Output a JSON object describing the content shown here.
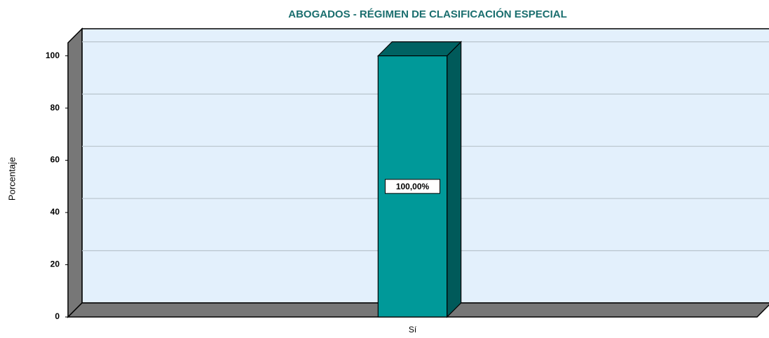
{
  "chart_data": {
    "type": "bar3d",
    "title": "ABOGADOS - RÉGIMEN DE CLASIFICACIÓN ESPECIAL",
    "y_label": "Porcentaje",
    "categories": [
      "Sí"
    ],
    "values": [
      100
    ],
    "value_labels": [
      "100,00%"
    ],
    "color": "#009999",
    "ylim": [
      0,
      105
    ],
    "yticks": [
      0,
      20,
      40,
      60,
      80,
      100
    ],
    "grid": true
  }
}
